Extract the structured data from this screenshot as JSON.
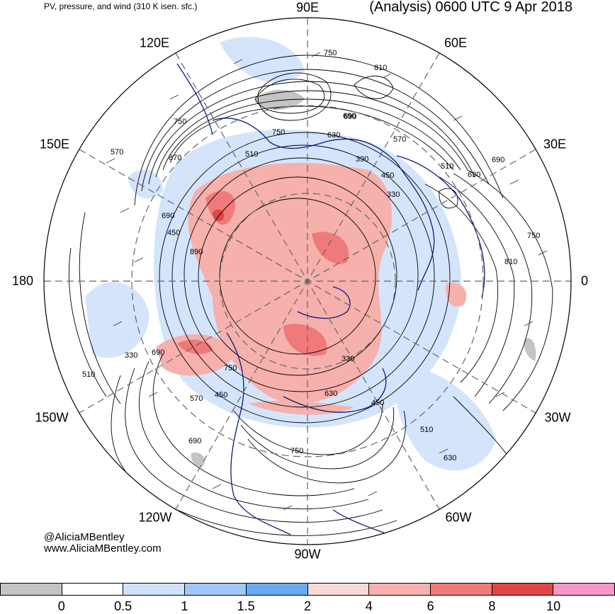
{
  "header": {
    "left": "PV, pressure, and wind (310 K isen. sfc.)",
    "right": "(Analysis) 0600 UTC 9 Apr 2018"
  },
  "longitude_labels": [
    "90E",
    "60E",
    "30E",
    "0",
    "30W",
    "60W",
    "90W",
    "120W",
    "150W",
    "180",
    "150E",
    "120E"
  ],
  "contour_labels": [
    "750",
    "810",
    "690",
    "570",
    "630",
    "750",
    "510",
    "390",
    "450",
    "330",
    "510",
    "630",
    "690",
    "750",
    "810",
    "870",
    "570",
    "750",
    "690",
    "450",
    "890",
    "330",
    "690",
    "510",
    "750",
    "450",
    "570",
    "630",
    "330",
    "450",
    "510",
    "630",
    "690",
    "750",
    "690"
  ],
  "credit": {
    "line1": "@AliciaMBentley",
    "line2": "www.AliciaMBentley.com"
  },
  "colorbar": {
    "colors": [
      "#c4c4c4",
      "#ffffff",
      "#cfe2fb",
      "#9fc6f5",
      "#6aaaf2",
      "#f9d9d7",
      "#f6b1ad",
      "#f07a7a",
      "#e04646",
      "#f597c8"
    ],
    "ticks": [
      "0",
      "0.5",
      "1",
      "1.5",
      "2",
      "4",
      "6",
      "8",
      "10"
    ]
  }
}
